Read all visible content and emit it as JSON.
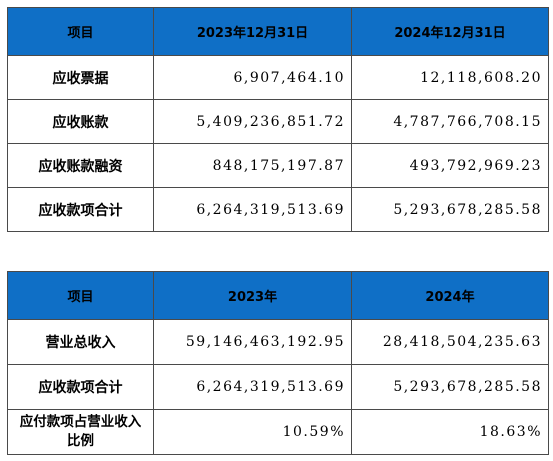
{
  "table1": {
    "headers": [
      "项目",
      "2023年12月31日",
      "2024年12月31日"
    ],
    "rows": [
      {
        "label": "应收票据",
        "v2023": "6,907,464.10",
        "v2024": "12,118,608.20"
      },
      {
        "label": "应收账款",
        "v2023": "5,409,236,851.72",
        "v2024": "4,787,766,708.15"
      },
      {
        "label": "应收账款融资",
        "v2023": "848,175,197.87",
        "v2024": "493,792,969.23"
      },
      {
        "label": "应收款项合计",
        "v2023": "6,264,319,513.69",
        "v2024": "5,293,678,285.58"
      }
    ]
  },
  "table2": {
    "headers": [
      "项目",
      "2023年",
      "2024年"
    ],
    "rows": [
      {
        "label": "营业总收入",
        "v2023": "59,146,463,192.95",
        "v2024": "28,418,504,235.63"
      },
      {
        "label": "应收款项合计",
        "v2023": "6,264,319,513.69",
        "v2024": "5,293,678,285.58"
      },
      {
        "label": "应付款项占营业收入比例",
        "v2023": "10.59%",
        "v2024": "18.63%"
      }
    ]
  },
  "colors": {
    "header_bg": "#0f6fc6",
    "border": "#4a4a4a"
  }
}
